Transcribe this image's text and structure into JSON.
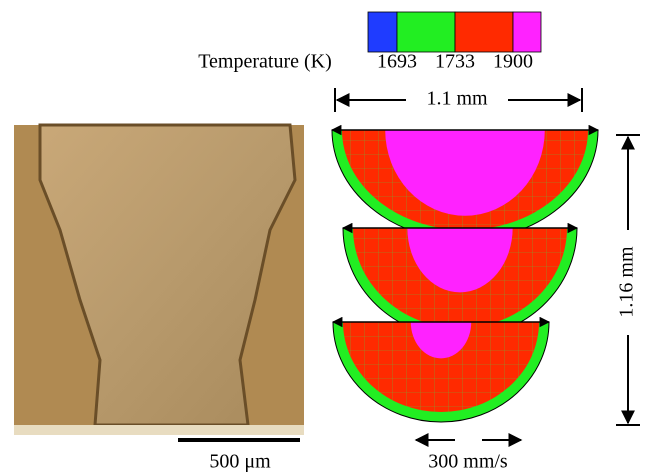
{
  "legend": {
    "title": "Temperature (K)",
    "labels": [
      "1693",
      "1733",
      "1900"
    ],
    "colors": [
      "#1f3cff",
      "#22ee22",
      "#ff2a00",
      "#ff22ff"
    ]
  },
  "dimensions": {
    "width": "1.1 mm",
    "height": "1.16 mm"
  },
  "micrograph": {
    "scale_bar": "500 μm"
  },
  "velocity": {
    "scale": "300 mm/s"
  }
}
